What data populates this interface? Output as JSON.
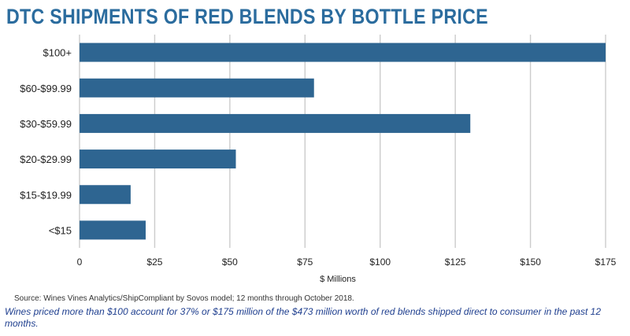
{
  "header": {
    "title": "DTC SHIPMENTS OF RED BLENDS BY BOTTLE PRICE"
  },
  "footer": {
    "source": "Source: Wines Vines Analytics/ShipCompliant by Sovos model; 12 months through October 2018.",
    "caption": "Wines priced more than $100 account for 37% or $175 million of the $473 million worth of red blends shipped direct to consumer in the past 12 months."
  },
  "chart_data": {
    "type": "bar",
    "orientation": "horizontal",
    "title": "DTC SHIPMENTS OF RED BLENDS BY BOTTLE PRICE",
    "xlabel": "$ Millions",
    "ylabel": "",
    "categories": [
      "$100+",
      "$60-$99.99",
      "$30-$59.99",
      "$20-$29.99",
      "$15-$19.99",
      "<$15"
    ],
    "values": [
      175,
      78,
      130,
      52,
      17,
      22
    ],
    "xlim": [
      0,
      175
    ],
    "x_ticks": [
      0,
      25,
      50,
      75,
      100,
      125,
      150,
      175
    ],
    "x_tick_labels": [
      "0",
      "$25",
      "$50",
      "$75",
      "$100",
      "$125",
      "$150",
      "$175"
    ],
    "grid": "vertical",
    "bar_color": "#2e6591",
    "grid_color": "#cccccc"
  }
}
